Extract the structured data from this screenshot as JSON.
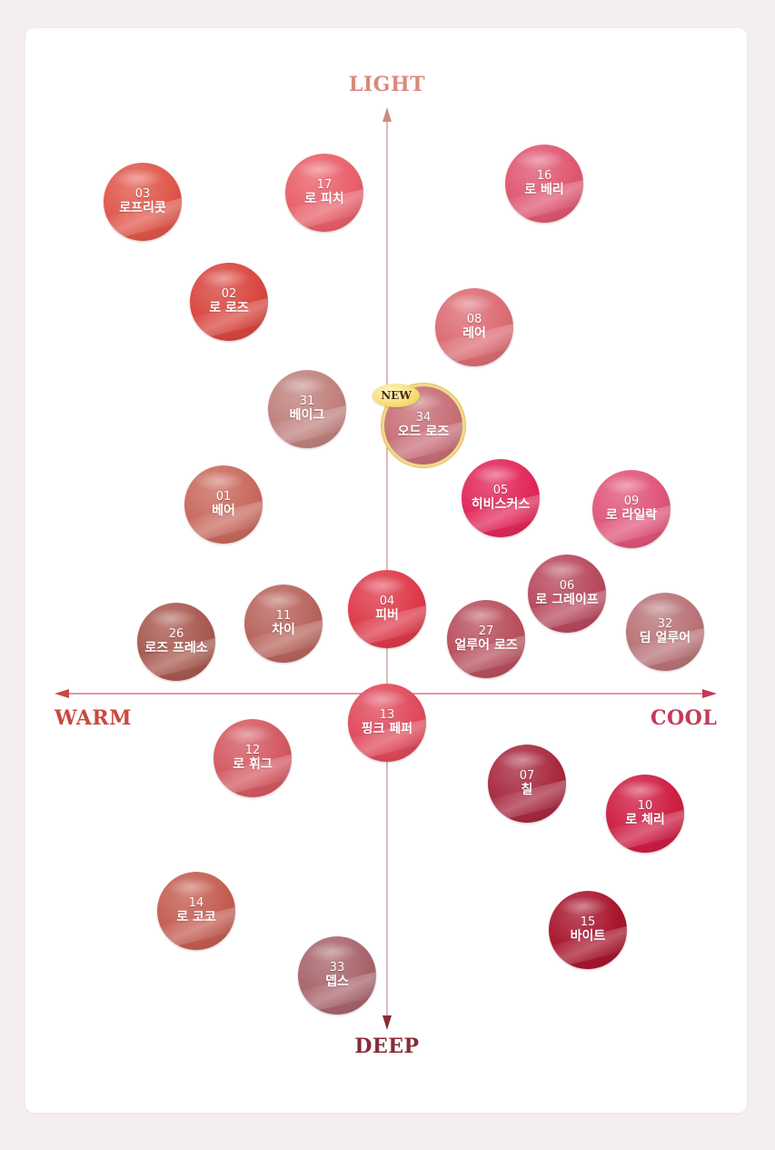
{
  "axes": {
    "top": {
      "label": "LIGHT",
      "color": "#d98a7e"
    },
    "bottom": {
      "label": "DEEP",
      "color": "#8a2a35"
    },
    "left": {
      "label": "WARM",
      "color": "#c9483f"
    },
    "right": {
      "label": "COOL",
      "color": "#c23a58"
    },
    "line_color_vertical": "#c98c86",
    "line_color_horizontal": "#cf5a66"
  },
  "badge": {
    "label": "NEW"
  },
  "shades": [
    {
      "num": "03",
      "name": "로프리콧",
      "color": "#e0574a"
    },
    {
      "num": "17",
      "name": "로 피치",
      "color": "#e9606a"
    },
    {
      "num": "16",
      "name": "로 베리",
      "color": "#e05872"
    },
    {
      "num": "02",
      "name": "로 로즈",
      "color": "#d9473f"
    },
    {
      "num": "08",
      "name": "레어",
      "color": "#dc6d74"
    },
    {
      "num": "31",
      "name": "베이그",
      "color": "#c0827e"
    },
    {
      "num": "34",
      "name": "오드 로즈",
      "color": "#c87078"
    },
    {
      "num": "01",
      "name": "베어",
      "color": "#c96a5e"
    },
    {
      "num": "05",
      "name": "히비스커스",
      "color": "#e2285a"
    },
    {
      "num": "09",
      "name": "로 라일락",
      "color": "#e0567a"
    },
    {
      "num": "06",
      "name": "로 그레이프",
      "color": "#b84a5e"
    },
    {
      "num": "04",
      "name": "피버",
      "color": "#de3a4a"
    },
    {
      "num": "11",
      "name": "차이",
      "color": "#b8655d"
    },
    {
      "num": "26",
      "name": "로즈 프레소",
      "color": "#a85a50"
    },
    {
      "num": "27",
      "name": "얼루어 로즈",
      "color": "#b8505e"
    },
    {
      "num": "32",
      "name": "딤 얼루어",
      "color": "#b97478"
    },
    {
      "num": "13",
      "name": "핑크 페퍼",
      "color": "#e04a5c"
    },
    {
      "num": "12",
      "name": "로 휘그",
      "color": "#d45a62"
    },
    {
      "num": "07",
      "name": "칠",
      "color": "#a82a40"
    },
    {
      "num": "10",
      "name": "로 체리",
      "color": "#cf1e44"
    },
    {
      "num": "14",
      "name": "로 코코",
      "color": "#c45e52"
    },
    {
      "num": "15",
      "name": "바이트",
      "color": "#a8162e"
    },
    {
      "num": "33",
      "name": "뎁스",
      "color": "#a8666c"
    }
  ]
}
